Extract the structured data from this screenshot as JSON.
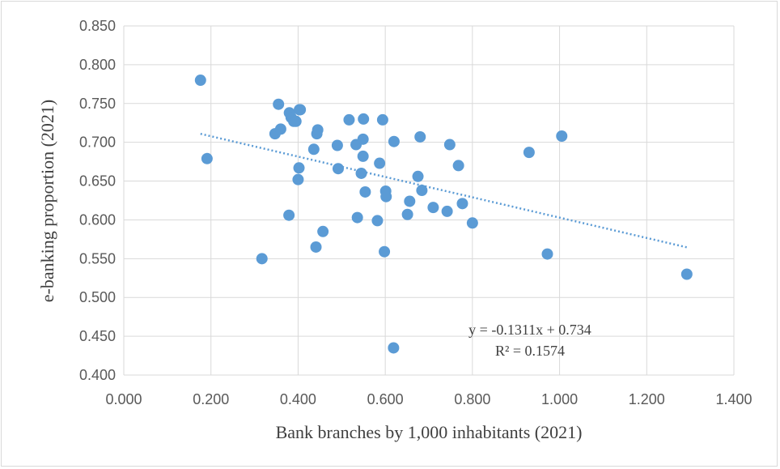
{
  "chart_data": {
    "type": "scatter",
    "xlabel": "Bank branches by 1,000 inhabitants (2021)",
    "ylabel": "e-banking proportion (2021)",
    "xlim": [
      0.0,
      1.4
    ],
    "ylim": [
      0.4,
      0.85
    ],
    "x_ticks": [
      "0.000",
      "0.200",
      "0.400",
      "0.600",
      "0.800",
      "1.000",
      "1.200",
      "1.400"
    ],
    "y_ticks": [
      "0.400",
      "0.450",
      "0.500",
      "0.550",
      "0.600",
      "0.650",
      "0.700",
      "0.750",
      "0.800",
      "0.850"
    ],
    "grid": "vertical and horizontal",
    "legend": "none",
    "marker_color": "#5b9bd5",
    "trendline": {
      "slope": -0.1311,
      "intercept": 0.734,
      "x_range": [
        0.176,
        1.292
      ],
      "style": "dotted",
      "equation_label": "y = -0.1311x + 0.734",
      "r2_label": "R² = 0.1574"
    },
    "series": [
      {
        "x": [
          0.176,
          0.191,
          0.317,
          0.347,
          0.355,
          0.36,
          0.379,
          0.38,
          0.384,
          0.39,
          0.395,
          0.4,
          0.402,
          0.403,
          0.405,
          0.436,
          0.441,
          0.443,
          0.445,
          0.457,
          0.49,
          0.492,
          0.517,
          0.533,
          0.536,
          0.545,
          0.549,
          0.549,
          0.55,
          0.554,
          0.582,
          0.587,
          0.594,
          0.598,
          0.601,
          0.602,
          0.619,
          0.62,
          0.651,
          0.656,
          0.675,
          0.68,
          0.684,
          0.71,
          0.742,
          0.748,
          0.768,
          0.777,
          0.8,
          0.93,
          0.972,
          1.005,
          1.292
        ],
        "y": [
          0.78,
          0.679,
          0.55,
          0.711,
          0.749,
          0.717,
          0.606,
          0.738,
          0.732,
          0.727,
          0.727,
          0.652,
          0.667,
          0.742,
          0.742,
          0.691,
          0.565,
          0.711,
          0.716,
          0.585,
          0.696,
          0.666,
          0.729,
          0.697,
          0.603,
          0.66,
          0.682,
          0.704,
          0.73,
          0.636,
          0.599,
          0.673,
          0.729,
          0.559,
          0.637,
          0.63,
          0.435,
          0.701,
          0.607,
          0.624,
          0.656,
          0.707,
          0.638,
          0.616,
          0.611,
          0.697,
          0.67,
          0.621,
          0.596,
          0.687,
          0.556,
          0.708,
          0.53
        ]
      }
    ]
  }
}
